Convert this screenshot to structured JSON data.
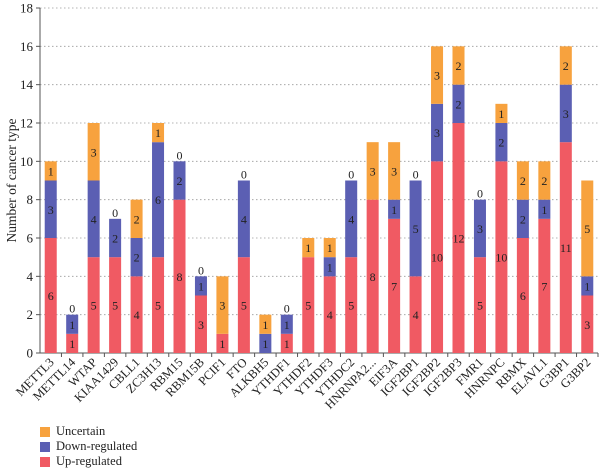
{
  "chart_data": {
    "type": "bar",
    "stacked": true,
    "ylabel": "Number of cancer type",
    "xlabel": "",
    "ylim": [
      0,
      18
    ],
    "yticks": [
      0,
      2,
      4,
      6,
      8,
      10,
      12,
      14,
      16,
      18
    ],
    "grid": "dotted horizontal",
    "legend_position": "bottom-left",
    "categories": [
      "METTL3",
      "METTL14",
      "WTAP",
      "KIAA1429",
      "CBLL1",
      "ZC3H13",
      "RBM15",
      "RBM15B",
      "PCIF1",
      "FTO",
      "ALKBH5",
      "YTHDF1",
      "YTHDF2",
      "YTHDF3",
      "YTHDC2",
      "HNRNPA2...",
      "EIF3A",
      "IGF2BP1",
      "IGF2BP2",
      "IGF2BP3",
      "FMR1",
      "HNRNPC",
      "RBMX",
      "ELAVL1",
      "G3BP1",
      "G3BP2"
    ],
    "series": [
      {
        "name": "Up-regulated",
        "color": "#f05a63",
        "values": [
          6,
          1,
          5,
          5,
          4,
          5,
          8,
          3,
          1,
          5,
          0,
          1,
          5,
          4,
          5,
          8,
          7,
          4,
          10,
          12,
          5,
          10,
          6,
          7,
          11,
          3
        ]
      },
      {
        "name": "Down-regulated",
        "color": "#5b5fb3",
        "values": [
          3,
          1,
          4,
          2,
          2,
          6,
          2,
          1,
          0,
          4,
          1,
          1,
          0,
          1,
          4,
          0,
          1,
          5,
          3,
          2,
          3,
          2,
          2,
          1,
          3,
          1
        ]
      },
      {
        "name": "Uncertain",
        "color": "#f7a23e",
        "values": [
          1,
          0,
          3,
          0,
          2,
          1,
          0,
          0,
          3,
          0,
          1,
          0,
          1,
          1,
          0,
          3,
          3,
          0,
          3,
          2,
          0,
          1,
          2,
          2,
          2,
          5
        ]
      }
    ],
    "legend_order": [
      "Uncertain",
      "Down-regulated",
      "Up-regulated"
    ]
  }
}
